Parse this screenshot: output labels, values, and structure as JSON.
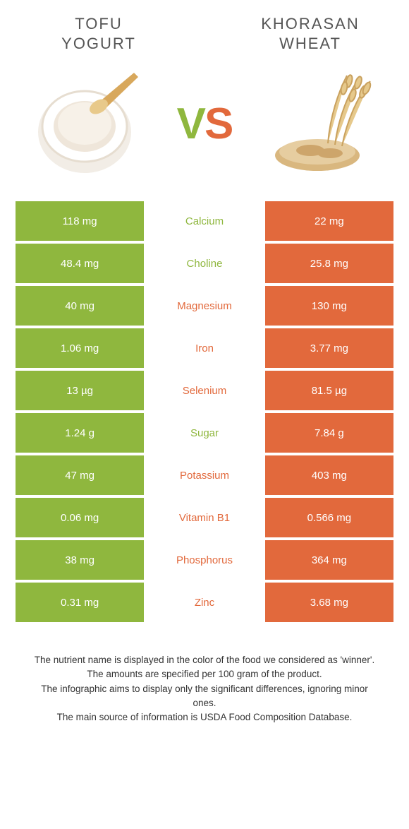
{
  "colors": {
    "left": "#8fb73e",
    "right": "#e2693c",
    "text": "#555555",
    "white": "#ffffff"
  },
  "titles": {
    "left": "TOFU\nYOGURT",
    "right": "KHORASAN\nWHEAT"
  },
  "vs": {
    "v": "V",
    "s": "S"
  },
  "rows": [
    {
      "left": "118 mg",
      "name": "Calcium",
      "right": "22 mg",
      "winner": "left"
    },
    {
      "left": "48.4 mg",
      "name": "Choline",
      "right": "25.8 mg",
      "winner": "left"
    },
    {
      "left": "40 mg",
      "name": "Magnesium",
      "right": "130 mg",
      "winner": "right"
    },
    {
      "left": "1.06 mg",
      "name": "Iron",
      "right": "3.77 mg",
      "winner": "right"
    },
    {
      "left": "13 µg",
      "name": "Selenium",
      "right": "81.5 µg",
      "winner": "right"
    },
    {
      "left": "1.24 g",
      "name": "Sugar",
      "right": "7.84 g",
      "winner": "left"
    },
    {
      "left": "47 mg",
      "name": "Potassium",
      "right": "403 mg",
      "winner": "right"
    },
    {
      "left": "0.06 mg",
      "name": "Vitamin B1",
      "right": "0.566 mg",
      "winner": "right"
    },
    {
      "left": "38 mg",
      "name": "Phosphorus",
      "right": "364 mg",
      "winner": "right"
    },
    {
      "left": "0.31 mg",
      "name": "Zinc",
      "right": "3.68 mg",
      "winner": "right"
    }
  ],
  "footnotes": [
    "The nutrient name is displayed in the color of the food we considered as 'winner'.",
    "The amounts are specified per 100 gram of the product.",
    "The infographic aims to display only the significant differences, ignoring minor ones.",
    "The main source of information is USDA Food Composition Database."
  ]
}
